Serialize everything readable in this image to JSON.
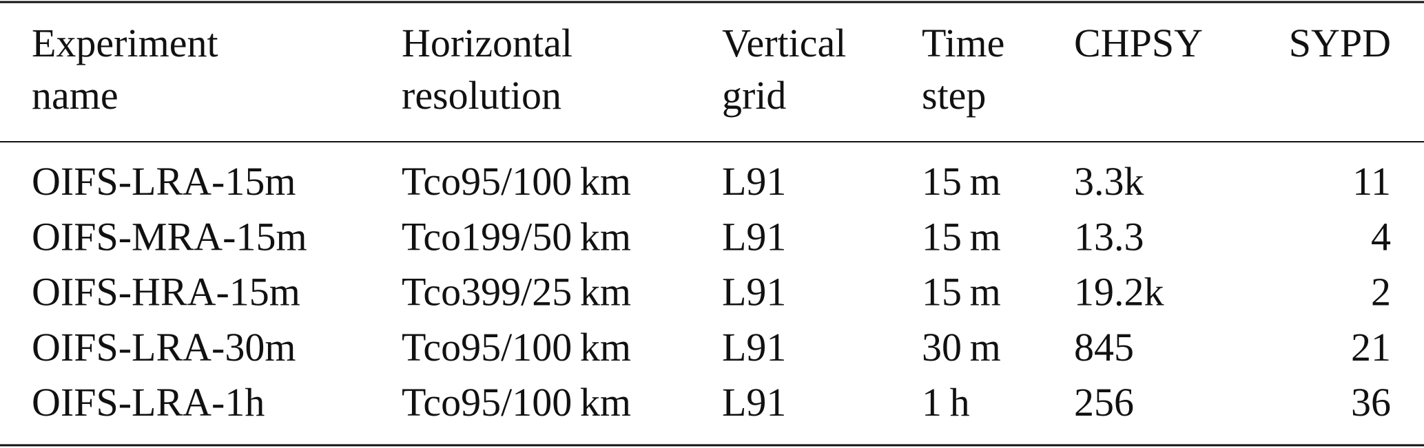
{
  "table": {
    "header": [
      [
        "Experiment",
        "name"
      ],
      [
        "Horizontal",
        "resolution"
      ],
      [
        "Vertical",
        "grid"
      ],
      [
        "Time",
        "step"
      ],
      [
        "CHPSY"
      ],
      [
        "SYPD"
      ]
    ],
    "rows": [
      [
        "OIFS-LRA-15m",
        "Tco95/100 km",
        "L91",
        "15 m",
        "3.3k",
        "11"
      ],
      [
        "OIFS-MRA-15m",
        "Tco199/50 km",
        "L91",
        "15 m",
        "13.3",
        "4"
      ],
      [
        "OIFS-HRA-15m",
        "Tco399/25 km",
        "L91",
        "15 m",
        "19.2k",
        "2"
      ],
      [
        "OIFS-LRA-30m",
        "Tco95/100 km",
        "L91",
        "30 m",
        "845",
        "21"
      ],
      [
        "OIFS-LRA-1h",
        "Tco95/100 km",
        "L91",
        "1 h",
        "256",
        "36"
      ]
    ]
  }
}
